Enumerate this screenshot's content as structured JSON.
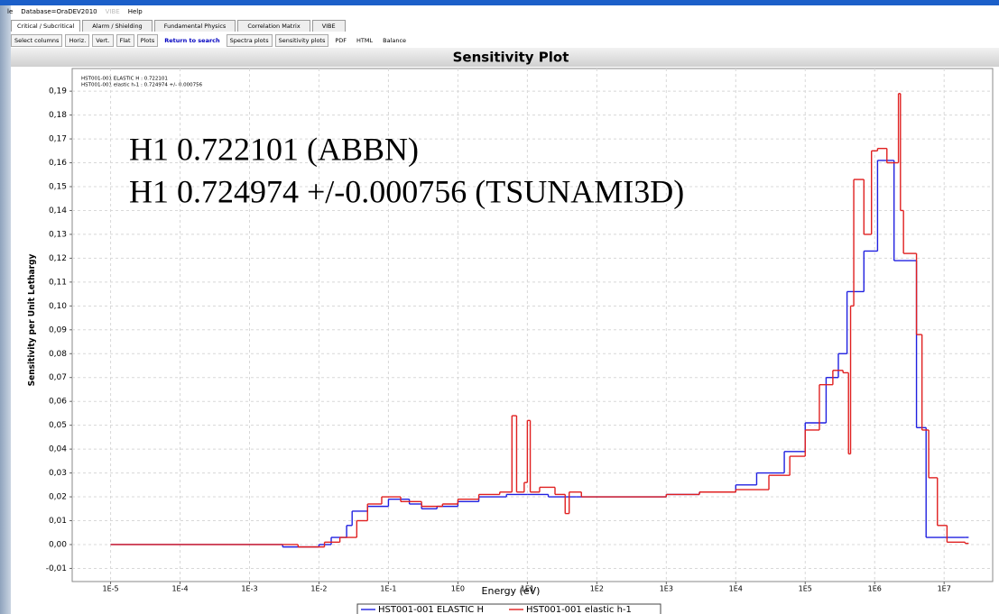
{
  "ui": {
    "menu": [
      "le",
      "Database=OraDEV2010",
      "VIBE",
      "Help"
    ],
    "tabs": [
      "Critical / Subcritical",
      "Alarm / Shielding",
      "Fundamental Physics",
      "Correlation Matrix",
      "VIBE"
    ],
    "toolbar": [
      "Select columns",
      "Horiz.",
      "Vert.",
      "Flat",
      "Plots",
      "Return to search",
      "Spectra plots",
      "Sensitivity plots",
      "PDF",
      "HTML",
      "Balance"
    ]
  },
  "chart_data": {
    "type": "step",
    "title": "Sensitivity Plot",
    "x_label": "Energy (eV)",
    "y_label": "Sensitivity per Unit Lethargy",
    "info": [
      "HST001-001 ELASTIC H : 0.722101",
      "HST001-001 elastic h-1 : 0.724974 +/- 0.000756"
    ],
    "annotations": [
      "H1 0.722101  (ABBN)",
      "H1 0.724974 +/-0.000756 (TSUNAMI3D)"
    ],
    "x_log": true,
    "grid": true,
    "xlim": [
      2.8e-06,
      50000000.0
    ],
    "ylim": [
      -0.0155,
      0.1995
    ],
    "xticks": [
      {
        "value": 1e-05,
        "label": "1E-5"
      },
      {
        "value": 0.0001,
        "label": "1E-4"
      },
      {
        "value": 0.001,
        "label": "1E-3"
      },
      {
        "value": 0.01,
        "label": "1E-2"
      },
      {
        "value": 0.1,
        "label": "1E-1"
      },
      {
        "value": 1,
        "label": "1E0"
      },
      {
        "value": 10,
        "label": "1E1"
      },
      {
        "value": 100,
        "label": "1E2"
      },
      {
        "value": 1000,
        "label": "1E3"
      },
      {
        "value": 10000,
        "label": "1E4"
      },
      {
        "value": 100000,
        "label": "1E5"
      },
      {
        "value": 1000000,
        "label": "1E6"
      },
      {
        "value": 10000000,
        "label": "1E7"
      }
    ],
    "yticks": [
      {
        "value": -0.01,
        "label": "-0,01"
      },
      {
        "value": 0,
        "label": "0,00"
      },
      {
        "value": 0.01,
        "label": "0,01"
      },
      {
        "value": 0.02,
        "label": "0,02"
      },
      {
        "value": 0.03,
        "label": "0,03"
      },
      {
        "value": 0.04,
        "label": "0,04"
      },
      {
        "value": 0.05,
        "label": "0,05"
      },
      {
        "value": 0.06,
        "label": "0,06"
      },
      {
        "value": 0.07,
        "label": "0,07"
      },
      {
        "value": 0.08,
        "label": "0,08"
      },
      {
        "value": 0.09,
        "label": "0,09"
      },
      {
        "value": 0.1,
        "label": "0,10"
      },
      {
        "value": 0.11,
        "label": "0,11"
      },
      {
        "value": 0.12,
        "label": "0,12"
      },
      {
        "value": 0.13,
        "label": "0,13"
      },
      {
        "value": 0.14,
        "label": "0,14"
      },
      {
        "value": 0.15,
        "label": "0,15"
      },
      {
        "value": 0.16,
        "label": "0,16"
      },
      {
        "value": 0.17,
        "label": "0,17"
      },
      {
        "value": 0.18,
        "label": "0,18"
      },
      {
        "value": 0.19,
        "label": "0,19"
      }
    ],
    "series": [
      {
        "name": "HST001-001 ELASTIC H",
        "color": "#2020e0",
        "x": [
          1e-05,
          0.0005,
          0.003,
          0.01,
          0.015,
          0.025,
          0.03,
          0.05,
          0.1,
          0.2,
          0.3,
          0.5,
          1,
          2,
          5,
          10,
          20,
          50,
          100,
          300,
          1000,
          3000,
          10000.0,
          20000.0,
          50000.0,
          100000.0,
          200000.0,
          300000.0,
          400000.0,
          700000.0,
          1100000.0,
          1900000.0,
          4000000.0,
          5500000.0,
          20000000.0
        ],
        "values": [
          0,
          0,
          -0.001,
          0,
          0.003,
          0.008,
          0.014,
          0.016,
          0.019,
          0.017,
          0.015,
          0.016,
          0.018,
          0.02,
          0.021,
          0.021,
          0.02,
          0.02,
          0.02,
          0.02,
          0.021,
          0.022,
          0.025,
          0.03,
          0.039,
          0.051,
          0.07,
          0.08,
          0.106,
          0.123,
          0.161,
          0.119,
          0.049,
          0.003,
          0.003
        ]
      },
      {
        "name": "HST001-001 elastic h-1",
        "color": "#e02020",
        "x": [
          1e-05,
          0.001,
          0.005,
          0.012,
          0.02,
          0.035,
          0.05,
          0.08,
          0.15,
          0.3,
          0.6,
          1,
          2,
          4,
          6,
          7,
          9,
          10,
          11,
          15,
          25,
          35,
          40,
          60,
          100,
          300,
          1000,
          3000,
          10000.0,
          30000.0,
          60000.0,
          100000.0,
          160000.0,
          250000.0,
          350000.0,
          420000.0,
          450000.0,
          500000.0,
          700000.0,
          900000.0,
          1100000.0,
          1500000.0,
          2200000.0,
          2350000.0,
          2600000.0,
          4000000.0,
          4800000.0,
          6000000.0,
          8000000.0,
          11000000.0,
          20000000.0
        ],
        "values": [
          0,
          0,
          -0.001,
          0.001,
          0.003,
          0.01,
          0.017,
          0.02,
          0.018,
          0.016,
          0.017,
          0.019,
          0.021,
          0.022,
          0.054,
          0.022,
          0.026,
          0.052,
          0.022,
          0.024,
          0.021,
          0.013,
          0.022,
          0.02,
          0.02,
          0.02,
          0.021,
          0.022,
          0.023,
          0.029,
          0.037,
          0.048,
          0.067,
          0.073,
          0.072,
          0.038,
          0.1,
          0.153,
          0.13,
          0.165,
          0.166,
          0.16,
          0.189,
          0.14,
          0.122,
          0.088,
          0.048,
          0.028,
          0.008,
          0.001,
          0.0005
        ]
      }
    ]
  }
}
